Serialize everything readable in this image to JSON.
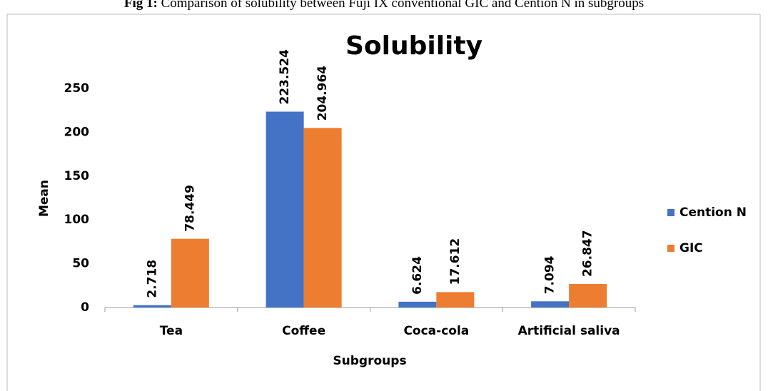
{
  "caption_label": "Fig 1:",
  "caption": "Comparison of solubility between Fuji IX conventional GIC and Cention N in subgroups",
  "chart_data": {
    "type": "bar",
    "title": "Solubility",
    "x_label": "Subgroups",
    "y_label": "Mean",
    "categories": [
      "Tea",
      "Coffee",
      "Coca-cola",
      "Artificial saliva"
    ],
    "series": [
      {
        "name": "Cention N",
        "color": "#4472c4",
        "values": [
          2.718,
          223.524,
          6.624,
          7.094
        ]
      },
      {
        "name": "GIC",
        "color": "#ed7d31",
        "values": [
          78.449,
          204.964,
          17.612,
          26.847
        ]
      }
    ],
    "ylim": [
      0,
      250
    ],
    "yticks": [
      0,
      50,
      100,
      150,
      200,
      250
    ],
    "grid": false,
    "legend": "right"
  }
}
